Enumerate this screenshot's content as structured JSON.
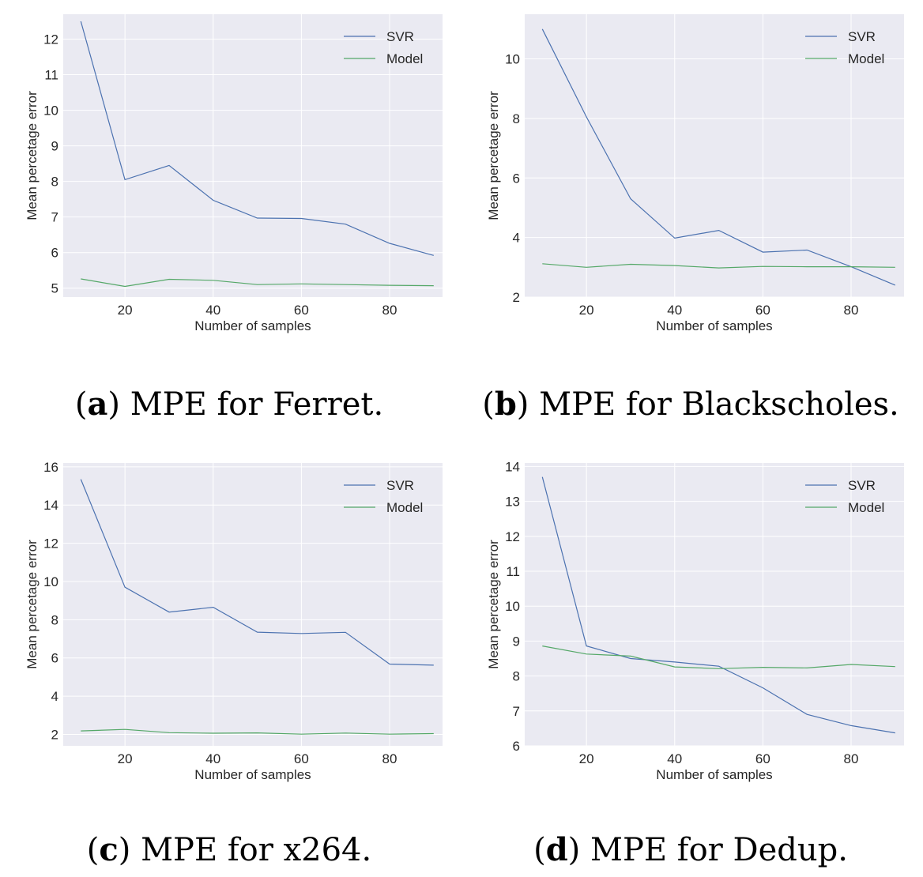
{
  "colors": {
    "svr": "#4c72b0",
    "model": "#55a868",
    "plot_bg": "#eaeaf2",
    "grid": "#ffffff"
  },
  "chart_data": [
    {
      "type": "line",
      "panel": "a",
      "caption_label": "a",
      "caption_text": "MPE for Ferret.",
      "xlabel": "Number of samples",
      "ylabel": "Mean percetage error",
      "xlim": [
        6,
        92
      ],
      "ylim": [
        4.75,
        12.7
      ],
      "xticks": [
        20,
        40,
        60,
        80
      ],
      "yticks": [
        5,
        6,
        7,
        8,
        9,
        10,
        11,
        12
      ],
      "legend_position": "top-right",
      "x": [
        10,
        20,
        30,
        40,
        50,
        60,
        70,
        80,
        90
      ],
      "series": [
        {
          "name": "SVR",
          "values": [
            12.5,
            8.05,
            8.45,
            7.47,
            6.97,
            6.96,
            6.8,
            6.26,
            5.92
          ]
        },
        {
          "name": "Model",
          "values": [
            5.26,
            5.05,
            5.25,
            5.22,
            5.1,
            5.12,
            5.1,
            5.08,
            5.07
          ]
        }
      ]
    },
    {
      "type": "line",
      "panel": "b",
      "caption_label": "b",
      "caption_text": "MPE for Blackscholes.",
      "xlabel": "Number of samples",
      "ylabel": "Mean percetage error",
      "xlim": [
        6,
        92
      ],
      "ylim": [
        2.0,
        11.5
      ],
      "xticks": [
        20,
        40,
        60,
        80
      ],
      "yticks": [
        2,
        4,
        6,
        8,
        10
      ],
      "legend_position": "top-right",
      "x": [
        10,
        20,
        30,
        40,
        50,
        60,
        70,
        80,
        90
      ],
      "series": [
        {
          "name": "SVR",
          "values": [
            11.0,
            8.05,
            5.3,
            3.98,
            4.24,
            3.51,
            3.58,
            3.02,
            2.4
          ]
        },
        {
          "name": "Model",
          "values": [
            3.12,
            3.0,
            3.1,
            3.06,
            2.98,
            3.03,
            3.02,
            3.02,
            3.0
          ]
        }
      ]
    },
    {
      "type": "line",
      "panel": "c",
      "caption_label": "c",
      "caption_text": "MPE for x264.",
      "xlabel": "Number of samples",
      "ylabel": "Mean percetage error",
      "xlim": [
        6,
        92
      ],
      "ylim": [
        1.4,
        16.2
      ],
      "xticks": [
        20,
        40,
        60,
        80
      ],
      "yticks": [
        2,
        4,
        6,
        8,
        10,
        12,
        14,
        16
      ],
      "legend_position": "top-right",
      "x": [
        10,
        20,
        30,
        40,
        50,
        60,
        70,
        80,
        90
      ],
      "series": [
        {
          "name": "SVR",
          "values": [
            15.35,
            9.7,
            8.4,
            8.65,
            7.35,
            7.28,
            7.34,
            5.68,
            5.62
          ]
        },
        {
          "name": "Model",
          "values": [
            2.18,
            2.26,
            2.09,
            2.06,
            2.08,
            2.01,
            2.07,
            2.01,
            2.04
          ]
        }
      ]
    },
    {
      "type": "line",
      "panel": "d",
      "caption_label": "d",
      "caption_text": "MPE for Dedup.",
      "xlabel": "Number of samples",
      "ylabel": "Mean percetage error",
      "xlim": [
        6,
        92
      ],
      "ylim": [
        6.0,
        14.1
      ],
      "xticks": [
        20,
        40,
        60,
        80
      ],
      "yticks": [
        6,
        7,
        8,
        9,
        10,
        11,
        12,
        13,
        14
      ],
      "legend_position": "top-right",
      "x": [
        10,
        20,
        30,
        40,
        50,
        60,
        70,
        80,
        90
      ],
      "series": [
        {
          "name": "SVR",
          "values": [
            13.7,
            8.86,
            8.5,
            8.4,
            8.28,
            7.66,
            6.9,
            6.58,
            6.37
          ]
        },
        {
          "name": "Model",
          "values": [
            8.86,
            8.63,
            8.57,
            8.26,
            8.21,
            8.25,
            8.23,
            8.33,
            8.27
          ]
        }
      ]
    }
  ]
}
